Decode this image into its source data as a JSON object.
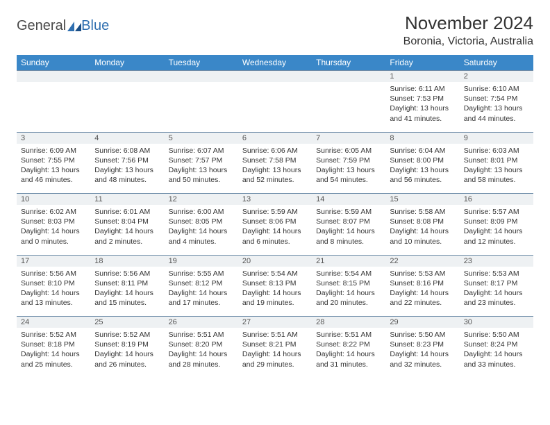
{
  "logo": {
    "word1": "General",
    "word2": "Blue"
  },
  "title": "November 2024",
  "location": "Boronia, Victoria, Australia",
  "day_headers": [
    "Sunday",
    "Monday",
    "Tuesday",
    "Wednesday",
    "Thursday",
    "Friday",
    "Saturday"
  ],
  "header_bg": "#3a87c8",
  "header_fg": "#ffffff",
  "numrow_bg": "#eef1f3",
  "numrow_border": "#6a89a6",
  "weeks": [
    {
      "nums": [
        "",
        "",
        "",
        "",
        "",
        "1",
        "2"
      ],
      "cells": [
        [],
        [],
        [],
        [],
        [],
        [
          "Sunrise: 6:11 AM",
          "Sunset: 7:53 PM",
          "Daylight: 13 hours",
          "and 41 minutes."
        ],
        [
          "Sunrise: 6:10 AM",
          "Sunset: 7:54 PM",
          "Daylight: 13 hours",
          "and 44 minutes."
        ]
      ]
    },
    {
      "nums": [
        "3",
        "4",
        "5",
        "6",
        "7",
        "8",
        "9"
      ],
      "cells": [
        [
          "Sunrise: 6:09 AM",
          "Sunset: 7:55 PM",
          "Daylight: 13 hours",
          "and 46 minutes."
        ],
        [
          "Sunrise: 6:08 AM",
          "Sunset: 7:56 PM",
          "Daylight: 13 hours",
          "and 48 minutes."
        ],
        [
          "Sunrise: 6:07 AM",
          "Sunset: 7:57 PM",
          "Daylight: 13 hours",
          "and 50 minutes."
        ],
        [
          "Sunrise: 6:06 AM",
          "Sunset: 7:58 PM",
          "Daylight: 13 hours",
          "and 52 minutes."
        ],
        [
          "Sunrise: 6:05 AM",
          "Sunset: 7:59 PM",
          "Daylight: 13 hours",
          "and 54 minutes."
        ],
        [
          "Sunrise: 6:04 AM",
          "Sunset: 8:00 PM",
          "Daylight: 13 hours",
          "and 56 minutes."
        ],
        [
          "Sunrise: 6:03 AM",
          "Sunset: 8:01 PM",
          "Daylight: 13 hours",
          "and 58 minutes."
        ]
      ]
    },
    {
      "nums": [
        "10",
        "11",
        "12",
        "13",
        "14",
        "15",
        "16"
      ],
      "cells": [
        [
          "Sunrise: 6:02 AM",
          "Sunset: 8:03 PM",
          "Daylight: 14 hours",
          "and 0 minutes."
        ],
        [
          "Sunrise: 6:01 AM",
          "Sunset: 8:04 PM",
          "Daylight: 14 hours",
          "and 2 minutes."
        ],
        [
          "Sunrise: 6:00 AM",
          "Sunset: 8:05 PM",
          "Daylight: 14 hours",
          "and 4 minutes."
        ],
        [
          "Sunrise: 5:59 AM",
          "Sunset: 8:06 PM",
          "Daylight: 14 hours",
          "and 6 minutes."
        ],
        [
          "Sunrise: 5:59 AM",
          "Sunset: 8:07 PM",
          "Daylight: 14 hours",
          "and 8 minutes."
        ],
        [
          "Sunrise: 5:58 AM",
          "Sunset: 8:08 PM",
          "Daylight: 14 hours",
          "and 10 minutes."
        ],
        [
          "Sunrise: 5:57 AM",
          "Sunset: 8:09 PM",
          "Daylight: 14 hours",
          "and 12 minutes."
        ]
      ]
    },
    {
      "nums": [
        "17",
        "18",
        "19",
        "20",
        "21",
        "22",
        "23"
      ],
      "cells": [
        [
          "Sunrise: 5:56 AM",
          "Sunset: 8:10 PM",
          "Daylight: 14 hours",
          "and 13 minutes."
        ],
        [
          "Sunrise: 5:56 AM",
          "Sunset: 8:11 PM",
          "Daylight: 14 hours",
          "and 15 minutes."
        ],
        [
          "Sunrise: 5:55 AM",
          "Sunset: 8:12 PM",
          "Daylight: 14 hours",
          "and 17 minutes."
        ],
        [
          "Sunrise: 5:54 AM",
          "Sunset: 8:13 PM",
          "Daylight: 14 hours",
          "and 19 minutes."
        ],
        [
          "Sunrise: 5:54 AM",
          "Sunset: 8:15 PM",
          "Daylight: 14 hours",
          "and 20 minutes."
        ],
        [
          "Sunrise: 5:53 AM",
          "Sunset: 8:16 PM",
          "Daylight: 14 hours",
          "and 22 minutes."
        ],
        [
          "Sunrise: 5:53 AM",
          "Sunset: 8:17 PM",
          "Daylight: 14 hours",
          "and 23 minutes."
        ]
      ]
    },
    {
      "nums": [
        "24",
        "25",
        "26",
        "27",
        "28",
        "29",
        "30"
      ],
      "cells": [
        [
          "Sunrise: 5:52 AM",
          "Sunset: 8:18 PM",
          "Daylight: 14 hours",
          "and 25 minutes."
        ],
        [
          "Sunrise: 5:52 AM",
          "Sunset: 8:19 PM",
          "Daylight: 14 hours",
          "and 26 minutes."
        ],
        [
          "Sunrise: 5:51 AM",
          "Sunset: 8:20 PM",
          "Daylight: 14 hours",
          "and 28 minutes."
        ],
        [
          "Sunrise: 5:51 AM",
          "Sunset: 8:21 PM",
          "Daylight: 14 hours",
          "and 29 minutes."
        ],
        [
          "Sunrise: 5:51 AM",
          "Sunset: 8:22 PM",
          "Daylight: 14 hours",
          "and 31 minutes."
        ],
        [
          "Sunrise: 5:50 AM",
          "Sunset: 8:23 PM",
          "Daylight: 14 hours",
          "and 32 minutes."
        ],
        [
          "Sunrise: 5:50 AM",
          "Sunset: 8:24 PM",
          "Daylight: 14 hours",
          "and 33 minutes."
        ]
      ]
    }
  ]
}
